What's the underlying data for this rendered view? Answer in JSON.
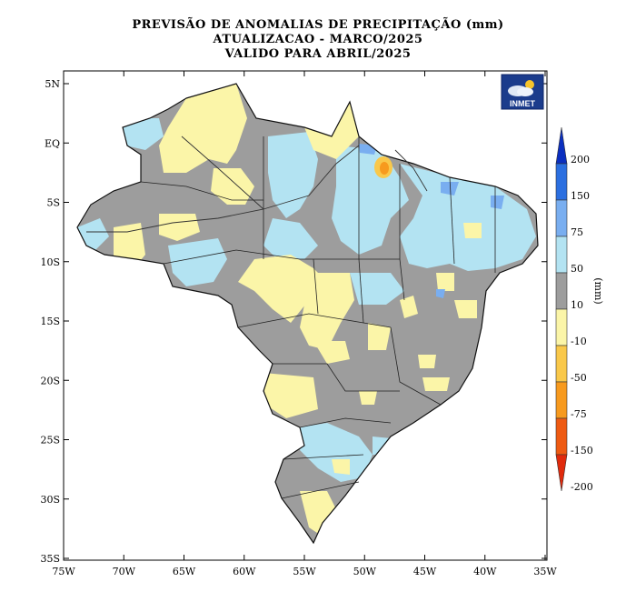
{
  "title": {
    "line1": "PREVISÃO DE ANOMALIAS DE PRECIPITAÇÃO (mm)",
    "line2": "ATUALIZACAO - MARCO/2025",
    "line3": "VALIDO PARA ABRIL/2025"
  },
  "logo": {
    "text": "INMET"
  },
  "axes": {
    "x_ticks": [
      "75W",
      "70W",
      "65W",
      "60W",
      "55W",
      "50W",
      "45W",
      "40W",
      "35W"
    ],
    "y_ticks": [
      "5N",
      "EQ",
      "5S",
      "10S",
      "15S",
      "20S",
      "25S",
      "30S",
      "35S"
    ]
  },
  "colorbar": {
    "unit": "(mm)",
    "labels": [
      "200",
      "150",
      "75",
      "50",
      "10",
      "-10",
      "-50",
      "-75",
      "-150",
      "-200"
    ],
    "colors": [
      "#0b2fbf",
      "#2b6fe0",
      "#79aef0",
      "#b3e3f2",
      "#9d9d9d",
      "#fbf5a8",
      "#f9c84a",
      "#f79a1e",
      "#ee5a12",
      "#e02a0c"
    ]
  },
  "legend_classes": [
    {
      "range": "10 a 50",
      "color": "#b3e3f2"
    },
    {
      "range": "-10 a 10",
      "color": "#9d9d9d"
    },
    {
      "range": "-50 a -10",
      "color": "#fbf5a8"
    }
  ]
}
